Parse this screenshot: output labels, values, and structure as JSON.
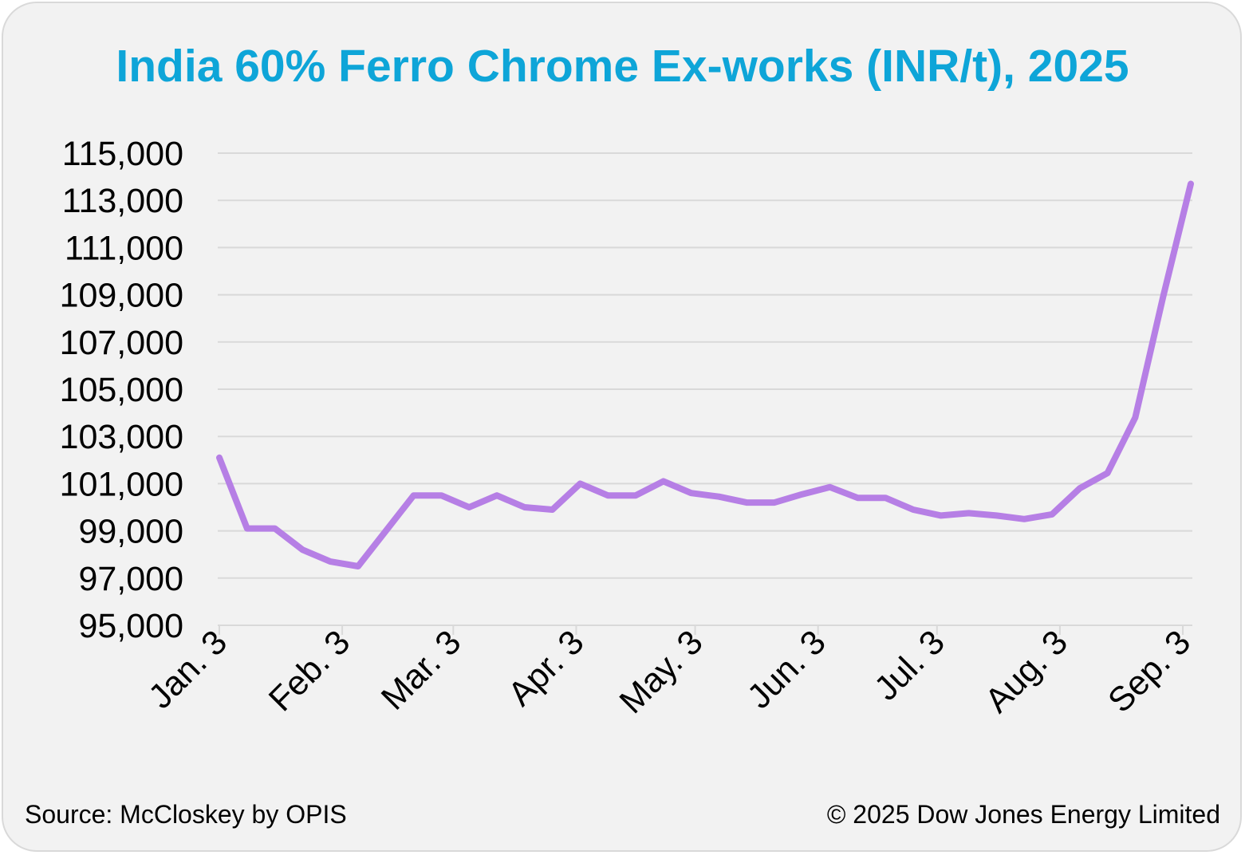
{
  "chart_data": {
    "type": "line",
    "title": "India 60% Ferro Chrome Ex-works (INR/t), 2025",
    "xlabel": "",
    "ylabel": "",
    "ylim": [
      95000,
      115000
    ],
    "yticks": [
      "95,000",
      "97,000",
      "99,000",
      "101,000",
      "103,000",
      "105,000",
      "107,000",
      "109,000",
      "111,000",
      "113,000",
      "115,000"
    ],
    "xticks": [
      "Jan. 3",
      "Feb. 3",
      "Mar. 3",
      "Apr. 3",
      "May. 3",
      "Jun. 3",
      "Jul. 3",
      "Aug. 3",
      "Sep. 3"
    ],
    "grid": true,
    "color": "#b67fe5",
    "series": [
      {
        "x": [
          "2025-01-03",
          "2025-01-10",
          "2025-01-17",
          "2025-01-24",
          "2025-01-31",
          "2025-02-07",
          "2025-02-14",
          "2025-02-21",
          "2025-02-28",
          "2025-03-07",
          "2025-03-14",
          "2025-03-21",
          "2025-03-28",
          "2025-04-04",
          "2025-04-11",
          "2025-04-18",
          "2025-04-25",
          "2025-05-02",
          "2025-05-09",
          "2025-05-16",
          "2025-05-23",
          "2025-05-30",
          "2025-06-06",
          "2025-06-13",
          "2025-06-20",
          "2025-06-27",
          "2025-07-04",
          "2025-07-11",
          "2025-07-18",
          "2025-07-25",
          "2025-08-01",
          "2025-08-08",
          "2025-08-15",
          "2025-08-22",
          "2025-08-29",
          "2025-09-05"
        ],
        "values": [
          102100,
          99100,
          99100,
          98200,
          97700,
          97500,
          99000,
          100500,
          100500,
          100000,
          100500,
          100000,
          99900,
          101000,
          100500,
          100500,
          101100,
          100600,
          100450,
          100200,
          100200,
          100550,
          100850,
          100400,
          100400,
          99900,
          99650,
          99750,
          99650,
          99500,
          99700,
          100800,
          101450,
          103800,
          108900,
          113700
        ]
      }
    ]
  },
  "footer": {
    "source": "Source: McCloskey by OPIS",
    "copyright": "© 2025 Dow Jones Energy Limited"
  }
}
